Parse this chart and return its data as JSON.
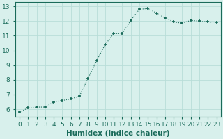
{
  "xlabel": "Humidex (Indice chaleur)",
  "background_color": "#d8f0ec",
  "grid_color": "#b8ddd8",
  "line_color": "#1a6b5a",
  "marker_color": "#1a6b5a",
  "x": [
    0,
    1,
    2,
    3,
    4,
    5,
    6,
    7,
    8,
    9,
    10,
    11,
    12,
    13,
    14,
    15,
    16,
    17,
    18,
    19,
    20,
    21,
    22,
    23
  ],
  "y": [
    5.8,
    6.1,
    6.15,
    6.15,
    6.5,
    6.6,
    6.7,
    6.9,
    8.1,
    9.3,
    10.4,
    11.15,
    11.15,
    12.05,
    12.8,
    12.85,
    12.55,
    12.2,
    11.95,
    11.85,
    12.05,
    12.0,
    11.95,
    11.9
  ],
  "ylim": [
    5.5,
    13.3
  ],
  "yticks": [
    6,
    7,
    8,
    9,
    10,
    11,
    12,
    13
  ],
  "xticks": [
    0,
    1,
    2,
    3,
    4,
    5,
    6,
    7,
    8,
    9,
    10,
    11,
    12,
    13,
    14,
    15,
    16,
    17,
    18,
    19,
    20,
    21,
    22,
    23
  ],
  "tick_fontsize": 6.5,
  "xlabel_fontsize": 7.5
}
